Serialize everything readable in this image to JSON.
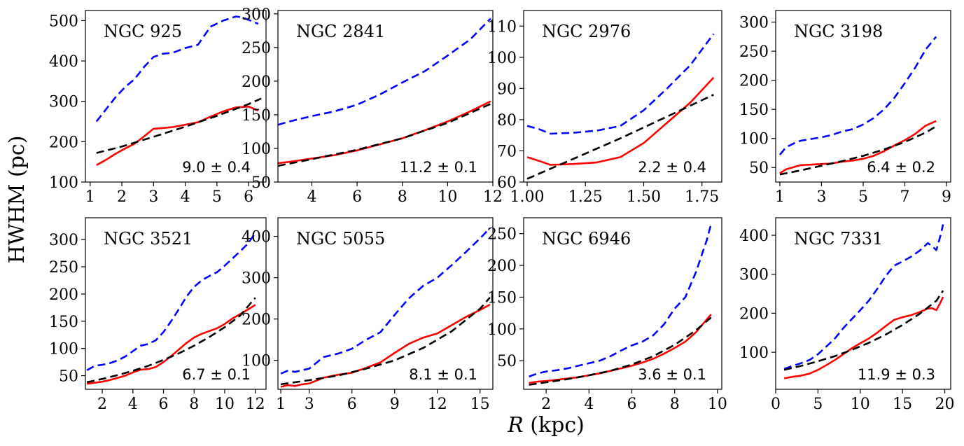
{
  "figure": {
    "ylabel": "HWHM (pc)",
    "xlabel_var": "R",
    "xlabel_unit": " (kpc)"
  },
  "colors": {
    "blue": "#0000ff",
    "red": "#ff0000",
    "black": "#000000"
  },
  "chart_data": [
    {
      "type": "line",
      "title": "NGC 925",
      "annotation": "9.0 ± 0.4",
      "xlim": [
        0.85,
        6.55
      ],
      "ylim": [
        100,
        525
      ],
      "xticks": [
        1,
        2,
        3,
        4,
        5,
        6
      ],
      "yticks": [
        100,
        200,
        300,
        400,
        500
      ],
      "series": [
        {
          "name": "dashed-blue",
          "style": "blue-dashed",
          "x": [
            1.2,
            1.5,
            1.8,
            2.1,
            2.4,
            2.7,
            3.0,
            3.3,
            3.6,
            4.0,
            4.4,
            4.8,
            5.2,
            5.6,
            5.8,
            6.0,
            6.3
          ],
          "y": [
            250,
            280,
            310,
            335,
            355,
            385,
            410,
            418,
            420,
            432,
            440,
            485,
            500,
            510,
            508,
            502,
            492
          ]
        },
        {
          "name": "solid-red",
          "style": "red-solid",
          "x": [
            1.2,
            1.5,
            1.8,
            2.1,
            2.4,
            2.7,
            3.0,
            3.3,
            3.6,
            4.0,
            4.4,
            4.8,
            5.2,
            5.6,
            6.0,
            6.3
          ],
          "y": [
            142,
            155,
            170,
            183,
            195,
            213,
            232,
            234,
            236,
            242,
            248,
            262,
            275,
            285,
            287,
            277
          ]
        },
        {
          "name": "dashed-black-fit",
          "style": "black-dashed",
          "x": [
            1.2,
            2.0,
            3.0,
            4.0,
            5.0,
            6.0,
            6.4
          ],
          "y": [
            172,
            188,
            212,
            237,
            264,
            293,
            307
          ]
        }
      ]
    },
    {
      "type": "line",
      "title": "NGC 2841",
      "annotation": "11.2 ± 0.1",
      "xlim": [
        2.5,
        12.0
      ],
      "ylim": [
        50,
        305
      ],
      "xticks": [
        4,
        6,
        8,
        10,
        12
      ],
      "yticks": [
        50,
        100,
        150,
        200,
        250,
        300
      ],
      "series": [
        {
          "name": "dashed-blue",
          "style": "blue-dashed",
          "x": [
            2.5,
            3,
            4,
            5,
            6,
            7,
            8,
            9,
            10,
            11,
            11.9
          ],
          "y": [
            135,
            140,
            148,
            155,
            165,
            180,
            198,
            215,
            238,
            262,
            293
          ]
        },
        {
          "name": "solid-red",
          "style": "red-solid",
          "x": [
            2.5,
            3,
            4,
            5,
            6,
            7,
            8,
            9,
            10,
            11,
            11.9
          ],
          "y": [
            78,
            80,
            85,
            90,
            97,
            106,
            115,
            127,
            140,
            155,
            170
          ]
        },
        {
          "name": "dashed-black-fit",
          "style": "black-dashed",
          "x": [
            2.5,
            4,
            6,
            8,
            10,
            11.9
          ],
          "y": [
            74,
            84,
            98,
            115,
            138,
            166
          ]
        }
      ]
    },
    {
      "type": "line",
      "title": "NGC 2976",
      "annotation": "2.2 ± 0.4",
      "xlim": [
        0.985,
        1.835
      ],
      "ylim": [
        60,
        115
      ],
      "xticks": [
        1.0,
        1.25,
        1.5,
        1.75
      ],
      "yticks": [
        60,
        70,
        80,
        90,
        100,
        110
      ],
      "xtick_labels": [
        "1.00",
        "1.25",
        "1.50",
        "1.75"
      ],
      "series": [
        {
          "name": "dashed-blue",
          "style": "blue-dashed",
          "x": [
            1.0,
            1.05,
            1.1,
            1.2,
            1.3,
            1.4,
            1.5,
            1.6,
            1.7,
            1.8
          ],
          "y": [
            78,
            77,
            75.5,
            75.8,
            76.5,
            78,
            83,
            90,
            97.5,
            107.5
          ]
        },
        {
          "name": "solid-red",
          "style": "red-solid",
          "x": [
            1.0,
            1.05,
            1.1,
            1.2,
            1.3,
            1.4,
            1.5,
            1.6,
            1.7,
            1.8
          ],
          "y": [
            68,
            66.8,
            65.5,
            65.8,
            66.3,
            68,
            72.5,
            79,
            85.5,
            93.5
          ]
        },
        {
          "name": "dashed-black-fit",
          "style": "black-dashed",
          "x": [
            1.0,
            1.2,
            1.4,
            1.6,
            1.8
          ],
          "y": [
            61,
            67.5,
            74,
            81,
            88
          ]
        }
      ]
    },
    {
      "type": "line",
      "title": "NGC 3198",
      "annotation": "6.4 ± 0.2",
      "xlim": [
        0.8,
        9.2
      ],
      "ylim": [
        25,
        320
      ],
      "xticks": [
        1,
        3,
        5,
        7,
        9
      ],
      "yticks": [
        50,
        100,
        150,
        200,
        250,
        300
      ],
      "series": [
        {
          "name": "dashed-blue",
          "style": "blue-dashed",
          "x": [
            1.0,
            1.3,
            1.7,
            2.0,
            2.5,
            3.0,
            3.5,
            4.0,
            4.5,
            5.0,
            5.5,
            6.0,
            6.5,
            7.0,
            7.5,
            8.0,
            8.5
          ],
          "y": [
            72,
            85,
            92,
            96,
            99,
            102,
            106,
            112,
            116,
            124,
            135,
            150,
            170,
            195,
            222,
            253,
            275
          ]
        },
        {
          "name": "solid-red",
          "style": "red-solid",
          "x": [
            1.0,
            1.3,
            1.7,
            2.0,
            2.5,
            3.0,
            3.5,
            4.0,
            4.5,
            5.0,
            5.5,
            6.0,
            6.5,
            7.0,
            7.5,
            8.0,
            8.5
          ],
          "y": [
            40,
            47,
            51,
            54,
            55,
            56,
            57,
            60,
            62,
            65,
            70,
            78,
            88,
            97,
            108,
            122,
            130
          ]
        },
        {
          "name": "dashed-black-fit",
          "style": "black-dashed",
          "x": [
            1.0,
            2.0,
            3.0,
            4.0,
            5.0,
            6.0,
            7.0,
            8.0,
            8.6
          ],
          "y": [
            38,
            45,
            53,
            61,
            70,
            81,
            94,
            110,
            123
          ]
        }
      ]
    },
    {
      "type": "line",
      "title": "NGC 3521",
      "annotation": "6.7 ± 0.1",
      "xlim": [
        0.9,
        12.7
      ],
      "ylim": [
        25,
        340
      ],
      "xticks": [
        2,
        4,
        6,
        8,
        10,
        12
      ],
      "yticks": [
        50,
        100,
        150,
        200,
        250,
        300
      ],
      "series": [
        {
          "name": "dashed-blue",
          "style": "blue-dashed",
          "x": [
            1.0,
            1.5,
            2.0,
            2.5,
            3.0,
            3.5,
            4.0,
            4.5,
            5.0,
            5.5,
            6.0,
            6.5,
            7.0,
            7.5,
            8.0,
            8.5,
            9.0,
            9.5,
            10.0,
            10.5,
            11.0,
            11.5,
            12.0
          ],
          "y": [
            60,
            68,
            70,
            73,
            78,
            85,
            95,
            105,
            108,
            115,
            130,
            150,
            172,
            195,
            213,
            225,
            233,
            240,
            252,
            265,
            278,
            292,
            312
          ]
        },
        {
          "name": "solid-red",
          "style": "red-solid",
          "x": [
            1.0,
            1.5,
            2.0,
            2.5,
            3.0,
            3.5,
            4.0,
            4.5,
            5.0,
            5.5,
            6.0,
            6.5,
            7.0,
            7.5,
            8.0,
            8.5,
            9.0,
            9.5,
            10.0,
            10.5,
            11.0,
            11.5,
            12.0
          ],
          "y": [
            35,
            37,
            39,
            42,
            46,
            50,
            56,
            61,
            62,
            66,
            75,
            86,
            98,
            110,
            120,
            127,
            132,
            137,
            145,
            155,
            163,
            171,
            180
          ]
        },
        {
          "name": "dashed-black-fit",
          "style": "black-dashed",
          "x": [
            1.0,
            2.0,
            3.0,
            4.0,
            5.0,
            6.0,
            7.0,
            8.0,
            9.0,
            10.0,
            11.0,
            12.0
          ],
          "y": [
            38,
            44,
            51,
            59,
            68,
            79,
            91,
            105,
            121,
            139,
            160,
            193
          ]
        }
      ]
    },
    {
      "type": "line",
      "title": "NGC 5055",
      "annotation": "8.1 ± 0.1",
      "xlim": [
        0.8,
        15.9
      ],
      "ylim": [
        30,
        445
      ],
      "xticks": [
        1,
        3,
        6,
        9,
        12,
        15
      ],
      "yticks": [
        100,
        200,
        300,
        400
      ],
      "series": [
        {
          "name": "dashed-blue",
          "style": "blue-dashed",
          "x": [
            1,
            1.5,
            2,
            2.5,
            3,
            4,
            5,
            6,
            7,
            8,
            9,
            10,
            11,
            12,
            13,
            14,
            15,
            15.7
          ],
          "y": [
            68,
            75,
            72,
            76,
            80,
            108,
            116,
            128,
            150,
            168,
            210,
            250,
            280,
            300,
            330,
            362,
            395,
            420
          ]
        },
        {
          "name": "solid-red",
          "style": "red-solid",
          "x": [
            1,
            1.5,
            2,
            2.5,
            3,
            4,
            5,
            6,
            7,
            8,
            9,
            10,
            11,
            12,
            13,
            14,
            15,
            15.7
          ],
          "y": [
            36,
            40,
            38,
            42,
            44,
            58,
            65,
            70,
            82,
            95,
            118,
            140,
            155,
            165,
            185,
            205,
            222,
            235
          ]
        },
        {
          "name": "dashed-black-fit",
          "style": "black-dashed",
          "x": [
            1,
            3,
            5,
            7,
            9,
            11,
            13,
            15,
            15.7
          ],
          "y": [
            42,
            52,
            63,
            80,
            100,
            130,
            170,
            225,
            252
          ]
        }
      ]
    },
    {
      "type": "line",
      "title": "NGC 6946",
      "annotation": "3.6 ± 0.1",
      "xlim": [
        0.95,
        10.2
      ],
      "ylim": [
        5,
        275
      ],
      "xticks": [
        2,
        4,
        6,
        8,
        10
      ],
      "yticks": [
        50,
        100,
        150,
        200,
        250
      ],
      "series": [
        {
          "name": "dashed-blue",
          "style": "blue-dashed",
          "x": [
            1.2,
            1.6,
            2.0,
            2.5,
            3.0,
            3.5,
            4.0,
            4.5,
            5.0,
            5.5,
            6.0,
            6.5,
            7.0,
            7.5,
            8.0,
            8.5,
            9.0,
            9.5,
            9.7
          ],
          "y": [
            25,
            30,
            33,
            35,
            38,
            42,
            46,
            50,
            57,
            66,
            74,
            80,
            90,
            107,
            132,
            150,
            190,
            240,
            265
          ]
        },
        {
          "name": "solid-red",
          "style": "red-solid",
          "x": [
            1.2,
            1.6,
            2.0,
            2.5,
            3.0,
            3.5,
            4.0,
            4.5,
            5.0,
            5.5,
            6.0,
            6.5,
            7.0,
            7.5,
            8.0,
            8.5,
            9.0,
            9.5,
            9.7
          ],
          "y": [
            15,
            17,
            18,
            20,
            22,
            24,
            27,
            30,
            34,
            38,
            42,
            47,
            53,
            61,
            70,
            80,
            95,
            115,
            123
          ]
        },
        {
          "name": "dashed-black-fit",
          "style": "black-dashed",
          "x": [
            1.2,
            2,
            3,
            4,
            5,
            6,
            7,
            8,
            9,
            9.7
          ],
          "y": [
            12,
            16,
            21,
            27,
            34,
            44,
            57,
            75,
            98,
            118
          ]
        }
      ]
    },
    {
      "type": "line",
      "title": "NGC 7331",
      "annotation": "11.9 ± 0.3",
      "xlim": [
        0,
        20.7
      ],
      "ylim": [
        5,
        445
      ],
      "xticks": [
        0,
        5,
        10,
        15,
        20
      ],
      "yticks": [
        100,
        200,
        300,
        400
      ],
      "series": [
        {
          "name": "dashed-blue",
          "style": "blue-dashed",
          "x": [
            1,
            2,
            3,
            4,
            5,
            6,
            7,
            8,
            9,
            10,
            11,
            12,
            13,
            14,
            15,
            16,
            17,
            18,
            18.5,
            19,
            19.5,
            19.8
          ],
          "y": [
            57,
            65,
            72,
            80,
            95,
            115,
            135,
            162,
            185,
            208,
            232,
            262,
            295,
            322,
            333,
            345,
            360,
            380,
            372,
            362,
            400,
            428
          ]
        },
        {
          "name": "solid-red",
          "style": "red-solid",
          "x": [
            1,
            2,
            3,
            4,
            5,
            6,
            7,
            8,
            9,
            10,
            11,
            12,
            13,
            14,
            15,
            16,
            17,
            18,
            18.5,
            19,
            19.5,
            19.8
          ],
          "y": [
            33,
            37,
            40,
            45,
            55,
            67,
            80,
            95,
            110,
            123,
            135,
            150,
            167,
            183,
            190,
            195,
            203,
            212,
            213,
            208,
            228,
            242
          ]
        },
        {
          "name": "dashed-black-fit",
          "style": "black-dashed",
          "x": [
            1,
            3,
            5,
            7,
            9,
            11,
            13,
            15,
            17,
            19,
            19.8
          ],
          "y": [
            55,
            65,
            77,
            90,
            106,
            124,
            145,
            170,
            198,
            232,
            258
          ]
        }
      ]
    }
  ]
}
